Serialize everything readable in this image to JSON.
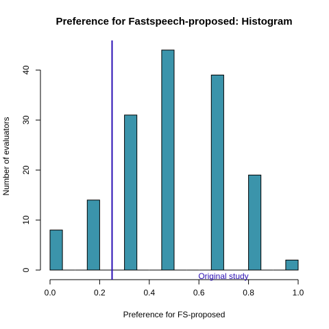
{
  "chart_data": {
    "type": "bar",
    "title": "Preference for Fastspeech-proposed: Histogram",
    "xlabel": "Preference for FS-proposed",
    "ylabel": "Number of evaluators",
    "xlim": [
      0.0,
      1.0
    ],
    "ylim": [
      0,
      44
    ],
    "xticks": [
      "0.0",
      "0.2",
      "0.4",
      "0.6",
      "0.8",
      "1.0"
    ],
    "yticks": [
      "0",
      "10",
      "20",
      "30",
      "40"
    ],
    "bin_width": 0.05,
    "bins": [
      {
        "left": 0.0,
        "count": 8
      },
      {
        "left": 0.05,
        "count": 0
      },
      {
        "left": 0.1,
        "count": 0
      },
      {
        "left": 0.15,
        "count": 14
      },
      {
        "left": 0.2,
        "count": 0
      },
      {
        "left": 0.25,
        "count": 0
      },
      {
        "left": 0.3,
        "count": 31
      },
      {
        "left": 0.35,
        "count": 0
      },
      {
        "left": 0.4,
        "count": 0
      },
      {
        "left": 0.45,
        "count": 44
      },
      {
        "left": 0.5,
        "count": 0
      },
      {
        "left": 0.55,
        "count": 0
      },
      {
        "left": 0.6,
        "count": 0
      },
      {
        "left": 0.65,
        "count": 39
      },
      {
        "left": 0.7,
        "count": 0
      },
      {
        "left": 0.75,
        "count": 0
      },
      {
        "left": 0.8,
        "count": 19
      },
      {
        "left": 0.85,
        "count": 0
      },
      {
        "left": 0.9,
        "count": 0
      },
      {
        "left": 0.95,
        "count": 2
      }
    ],
    "reference_line": {
      "x": 0.25,
      "label": "Original study",
      "color": "#2a0fb4"
    },
    "bar_color": "#3b94ab",
    "grid": false,
    "legend": "none"
  }
}
